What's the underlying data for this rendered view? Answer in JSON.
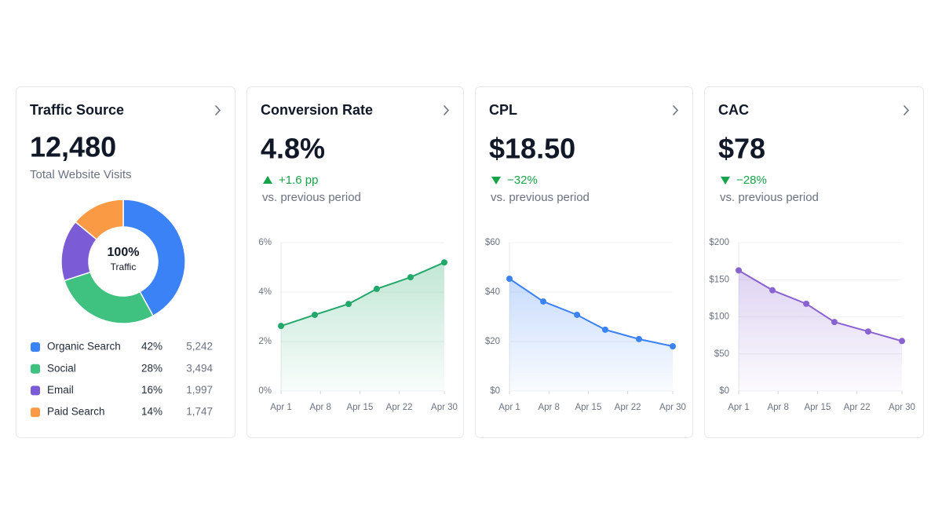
{
  "chart_data": [
    {
      "type": "pie",
      "title": "Traffic Source",
      "kpi": "12,480",
      "subtitle": "Total Website Visits",
      "center_label": "100%",
      "center_sublabel": "Traffic",
      "categories": [
        "Organic Search",
        "Social",
        "Email",
        "Paid Search"
      ],
      "values": [
        42,
        28,
        16,
        14
      ],
      "value_labels": [
        "42%",
        "28%",
        "16%",
        "14%"
      ],
      "visits": [
        "5,242",
        "3,494",
        "1,997",
        "1,747"
      ],
      "colors": [
        "#3b82f6",
        "#3fc17f",
        "#7c5cd6",
        "#fb9a45"
      ]
    },
    {
      "type": "line",
      "title": "Conversion Rate",
      "kpi": "4.8%",
      "delta": "+1.6 pp",
      "delta_direction": "up",
      "comparison": "vs. previous period",
      "x": [
        1,
        7,
        13,
        18,
        24,
        30
      ],
      "values": [
        2.63,
        3.08,
        3.52,
        4.13,
        4.6,
        5.2
      ],
      "color": "#22a86a",
      "xlim": [
        1,
        30
      ],
      "xticks": [
        {
          "value": 1,
          "label": "Apr 1"
        },
        {
          "value": 8,
          "label": "Apr 8"
        },
        {
          "value": 15,
          "label": "Apr 15"
        },
        {
          "value": 22,
          "label": "Apr 22"
        },
        {
          "value": 30,
          "label": "Apr 30"
        }
      ],
      "ylim": [
        0,
        6
      ],
      "yticks": [
        {
          "value": 0,
          "label": "0%"
        },
        {
          "value": 2,
          "label": "2%"
        },
        {
          "value": 4,
          "label": "4%"
        },
        {
          "value": 6,
          "label": "6%"
        }
      ],
      "grid": true
    },
    {
      "type": "line",
      "title": "CPL",
      "kpi": "$18.50",
      "delta": "−32%",
      "delta_direction": "down",
      "comparison": "vs. previous period",
      "x": [
        1,
        7,
        13,
        18,
        24,
        30
      ],
      "values": [
        45.4,
        36.2,
        30.8,
        24.8,
        21,
        18.1
      ],
      "color": "#3b82f6",
      "xlim": [
        1,
        30
      ],
      "xticks": [
        {
          "value": 1,
          "label": "Apr 1"
        },
        {
          "value": 8,
          "label": "Apr 8"
        },
        {
          "value": 15,
          "label": "Apr 15"
        },
        {
          "value": 22,
          "label": "Apr 22"
        },
        {
          "value": 30,
          "label": "Apr 30"
        }
      ],
      "ylim": [
        0,
        60
      ],
      "yticks": [
        {
          "value": 0,
          "label": "$0"
        },
        {
          "value": 20,
          "label": "$20"
        },
        {
          "value": 40,
          "label": "$40"
        },
        {
          "value": 60,
          "label": "$60"
        }
      ],
      "grid": true
    },
    {
      "type": "line",
      "title": "CAC",
      "kpi": "$78",
      "delta": "−28%",
      "delta_direction": "down",
      "comparison": "vs. previous period",
      "x": [
        1,
        7,
        13,
        18,
        24,
        30
      ],
      "values": [
        162.6,
        135.8,
        117.6,
        93,
        80.2,
        67.4
      ],
      "color": "#8a63d2",
      "xlim": [
        1,
        30
      ],
      "xticks": [
        {
          "value": 1,
          "label": "Apr 1"
        },
        {
          "value": 8,
          "label": "Apr 8"
        },
        {
          "value": 15,
          "label": "Apr 15"
        },
        {
          "value": 22,
          "label": "Apr 22"
        },
        {
          "value": 30,
          "label": "Apr 30"
        }
      ],
      "ylim": [
        0,
        200
      ],
      "yticks": [
        {
          "value": 0,
          "label": "$0"
        },
        {
          "value": 50,
          "label": "$50"
        },
        {
          "value": 100,
          "label": "$100"
        },
        {
          "value": 150,
          "label": "$150"
        },
        {
          "value": 200,
          "label": "$200"
        }
      ],
      "grid": true
    }
  ]
}
